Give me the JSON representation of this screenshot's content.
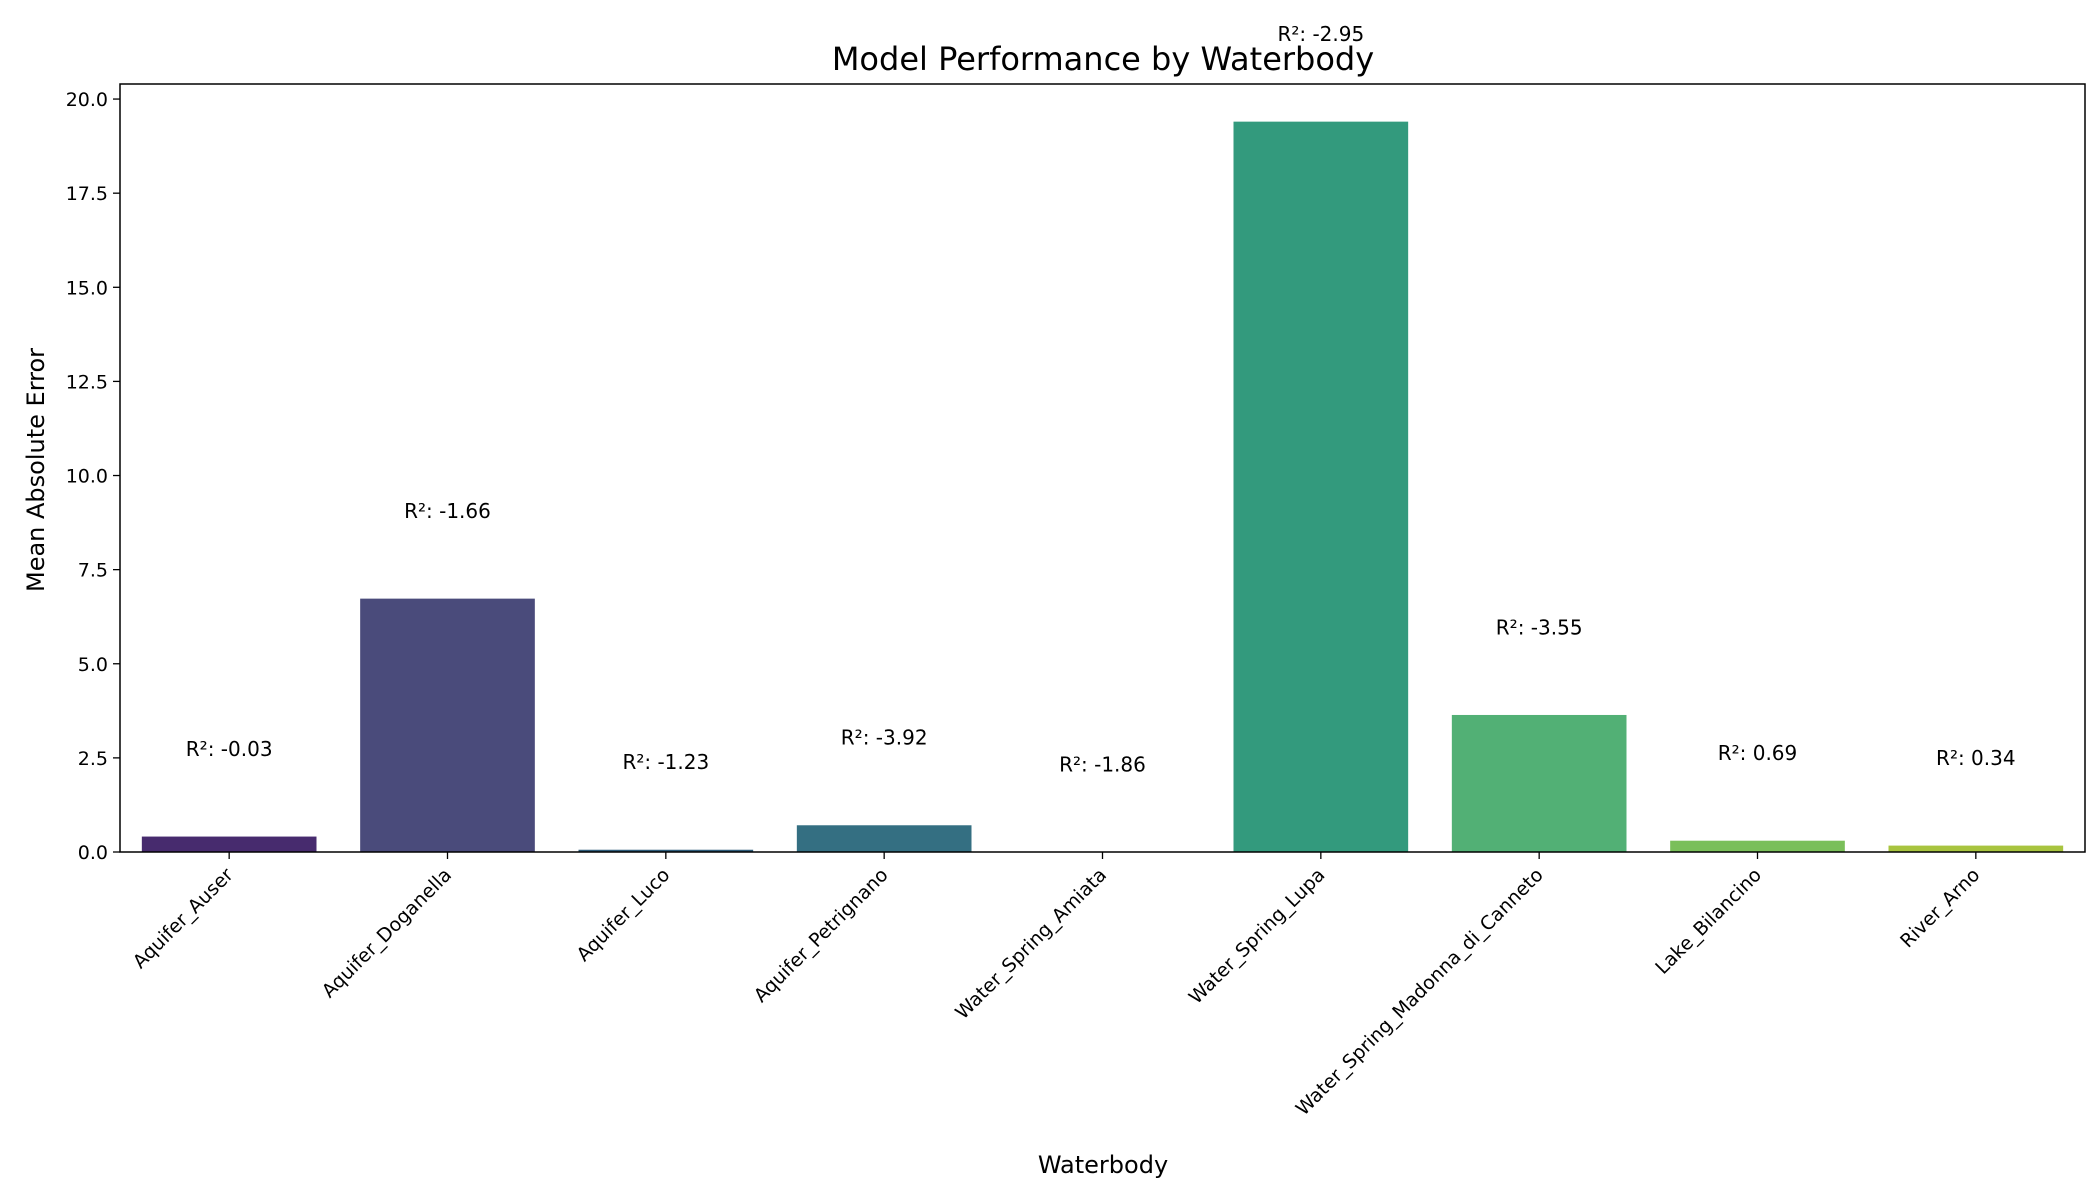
{
  "chart_data": {
    "type": "bar",
    "title": "Model Performance by Waterbody",
    "xlabel": "Waterbody",
    "ylabel": "Mean Absolute Error",
    "ylim": [
      0,
      20.4
    ],
    "yticks": [
      "0.0",
      "2.5",
      "5.0",
      "7.5",
      "10.0",
      "12.5",
      "15.0",
      "17.5",
      "20.0"
    ],
    "ytick_values": [
      0,
      2.5,
      5,
      7.5,
      10,
      12.5,
      15,
      17.5,
      20
    ],
    "grid": false,
    "legend": "none",
    "categories": [
      "Aquifer_Auser",
      "Aquifer_Doganella",
      "Aquifer_Luco",
      "Aquifer_Petrignano",
      "Water_Spring_Amiata",
      "Water_Spring_Lupa",
      "Water_Spring_Madonna_di_Canneto",
      "Lake_Bilancino",
      "River_Arno"
    ],
    "values": [
      0.41,
      6.73,
      0.06,
      0.71,
      0.0,
      19.4,
      3.64,
      0.3,
      0.17
    ],
    "annotations": [
      {
        "text": "R²: -0.03",
        "y": 2.55
      },
      {
        "text": "R²: -1.66",
        "y": 8.87
      },
      {
        "text": "R²: -1.23",
        "y": 2.2
      },
      {
        "text": "R²: -3.92",
        "y": 2.85
      },
      {
        "text": "R²: -1.86",
        "y": 2.14
      },
      {
        "text": "R²: -2.95",
        "y": 21.54
      },
      {
        "text": "R²: -3.55",
        "y": 5.78
      },
      {
        "text": "R²: 0.69",
        "y": 2.44
      },
      {
        "text": "R²: 0.34",
        "y": 2.31
      }
    ],
    "colors": [
      "#472b6e",
      "#4a4b7b",
      "#2e5c7a",
      "#346f82",
      "#2a8d8a",
      "#339a7d",
      "#52b075",
      "#7abf5a",
      "#a8c43f"
    ]
  }
}
